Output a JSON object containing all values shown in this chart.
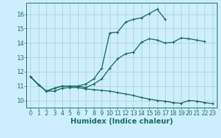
{
  "title": "",
  "xlabel": "Humidex (Indice chaleur)",
  "bg_color": "#cceeff",
  "grid_color": "#aacccc",
  "line_color": "#1a6b5e",
  "xlim": [
    -0.5,
    23.5
  ],
  "ylim": [
    9.5,
    16.8
  ],
  "xticks": [
    0,
    1,
    2,
    3,
    4,
    5,
    6,
    7,
    8,
    9,
    10,
    11,
    12,
    13,
    14,
    15,
    16,
    17,
    18,
    19,
    20,
    21,
    22,
    23
  ],
  "yticks": [
    10,
    11,
    12,
    13,
    14,
    15,
    16
  ],
  "curve1_x": [
    0,
    1,
    2,
    3,
    4,
    5,
    6,
    7,
    8,
    9,
    10,
    11,
    12,
    13,
    14,
    15,
    16,
    17,
    18,
    19,
    20,
    21,
    22,
    23
  ],
  "curve1_y": [
    11.65,
    11.1,
    10.65,
    10.65,
    10.85,
    10.9,
    10.9,
    10.8,
    10.75,
    10.7,
    10.65,
    10.55,
    10.45,
    10.35,
    10.2,
    10.1,
    10.0,
    9.95,
    9.85,
    9.8,
    10.0,
    9.95,
    9.85,
    9.78
  ],
  "curve2_x": [
    0,
    1,
    2,
    3,
    4,
    5,
    6,
    7,
    8,
    9,
    10,
    11,
    12,
    13,
    14,
    15,
    16,
    17,
    18,
    19,
    20,
    21,
    22
  ],
  "curve2_y": [
    11.65,
    11.1,
    10.65,
    10.85,
    11.0,
    11.0,
    11.0,
    10.9,
    11.15,
    11.5,
    12.25,
    12.9,
    13.25,
    13.35,
    14.05,
    14.3,
    14.2,
    14.0,
    14.05,
    14.35,
    14.3,
    14.2,
    14.1
  ],
  "curve3_x": [
    0,
    1,
    2,
    3,
    4,
    5,
    6,
    7,
    8,
    9,
    10,
    11,
    12,
    13,
    14,
    15,
    16,
    17
  ],
  "curve3_y": [
    11.65,
    11.1,
    10.65,
    10.85,
    11.0,
    11.0,
    11.0,
    11.15,
    11.5,
    12.25,
    14.7,
    14.75,
    15.45,
    15.65,
    15.75,
    16.05,
    16.35,
    15.65
  ],
  "marker_size": 3.5,
  "line_width": 1.0,
  "tick_fontsize": 6,
  "xlabel_fontsize": 7.5
}
